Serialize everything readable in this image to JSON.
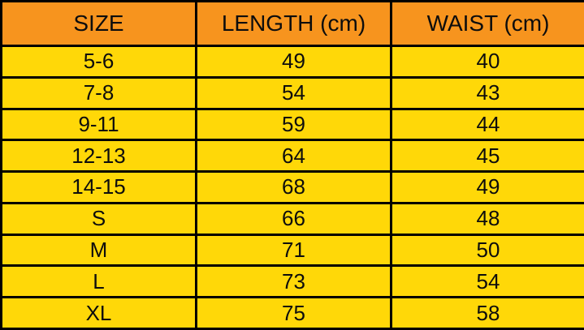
{
  "table": {
    "name": "garment-size-chart",
    "columns": [
      {
        "label": "SIZE"
      },
      {
        "label": "LENGTH (cm)"
      },
      {
        "label": "WAIST (cm)"
      }
    ],
    "rows": [
      {
        "size": "5-6",
        "length": "49",
        "waist": "40"
      },
      {
        "size": "7-8",
        "length": "54",
        "waist": "43"
      },
      {
        "size": "9-11",
        "length": "59",
        "waist": "44"
      },
      {
        "size": "12-13",
        "length": "64",
        "waist": "45"
      },
      {
        "size": "14-15",
        "length": "68",
        "waist": "49"
      },
      {
        "size": "S",
        "length": "66",
        "waist": "48"
      },
      {
        "size": "M",
        "length": "71",
        "waist": "50"
      },
      {
        "size": "L",
        "length": "73",
        "waist": "54"
      },
      {
        "size": "XL",
        "length": "75",
        "waist": "58"
      }
    ]
  },
  "colors": {
    "header_bg": "#F7941E",
    "row_bg": "#FFD808",
    "border": "#000000",
    "text": "#0d0d0d"
  }
}
